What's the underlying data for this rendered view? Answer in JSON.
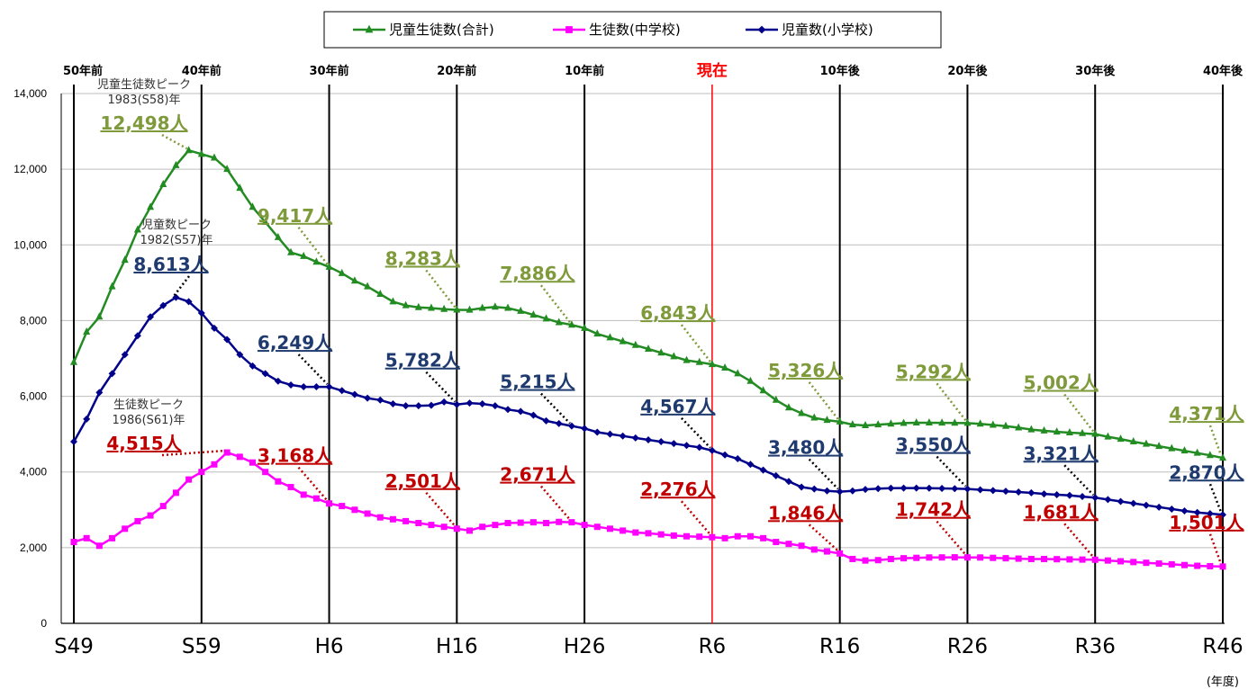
{
  "chart_data": {
    "type": "line",
    "legend": {
      "position": "top-center",
      "items": [
        {
          "key": "total",
          "label": "児童生徒数(合計)",
          "color": "#228b22",
          "marker": "triangle"
        },
        {
          "key": "junior",
          "label": "生徒数(中学校)",
          "color": "#ff00ff",
          "marker": "square"
        },
        {
          "key": "elementary",
          "label": "児童数(小学校)",
          "color": "#00008b",
          "marker": "diamond"
        }
      ]
    },
    "x_range": [
      1974,
      2064
    ],
    "ylim": [
      0,
      14000
    ],
    "y_ticks": [
      "14,000",
      "12,000",
      "10,000",
      "8,000",
      "6,000",
      "4,000",
      "2,000",
      "0"
    ],
    "y_tick_values": [
      14000,
      12000,
      10000,
      8000,
      6000,
      4000,
      2000,
      0
    ],
    "x_ticks": [
      {
        "year": 1974,
        "label": "S49"
      },
      {
        "year": 1984,
        "label": "S59"
      },
      {
        "year": 1994,
        "label": "H6"
      },
      {
        "year": 2004,
        "label": "H16"
      },
      {
        "year": 2014,
        "label": "H26"
      },
      {
        "year": 2024,
        "label": "R6"
      },
      {
        "year": 2034,
        "label": "R16"
      },
      {
        "year": 2044,
        "label": "R26"
      },
      {
        "year": 2054,
        "label": "R36"
      },
      {
        "year": 2064,
        "label": "R46"
      }
    ],
    "top_ticks": [
      {
        "year": 1974,
        "label": "50年前"
      },
      {
        "year": 1984,
        "label": "40年前"
      },
      {
        "year": 1994,
        "label": "30年前"
      },
      {
        "year": 2004,
        "label": "20年前"
      },
      {
        "year": 2014,
        "label": "10年前"
      },
      {
        "year": 2024,
        "label": "現在",
        "highlight": true
      },
      {
        "year": 2034,
        "label": "10年後"
      },
      {
        "year": 2044,
        "label": "20年後"
      },
      {
        "year": 2054,
        "label": "30年後"
      },
      {
        "year": 2064,
        "label": "40年後"
      }
    ],
    "x_unit": "(年度)",
    "grid": "horizontal gridlines with vertical lines every 10 years",
    "series": [
      {
        "key": "total",
        "name": "児童生徒数(合計)",
        "color": "#228b22",
        "x": [
          1974,
          1975,
          1976,
          1977,
          1978,
          1979,
          1980,
          1981,
          1982,
          1983,
          1984,
          1985,
          1986,
          1987,
          1988,
          1989,
          1990,
          1991,
          1992,
          1993,
          1994,
          1995,
          1996,
          1997,
          1998,
          1999,
          2000,
          2001,
          2002,
          2003,
          2004,
          2005,
          2006,
          2007,
          2008,
          2009,
          2010,
          2011,
          2012,
          2013,
          2014,
          2015,
          2016,
          2017,
          2018,
          2019,
          2020,
          2021,
          2022,
          2023,
          2024,
          2025,
          2026,
          2027,
          2028,
          2029,
          2030,
          2031,
          2032,
          2033,
          2034,
          2035,
          2036,
          2037,
          2038,
          2039,
          2040,
          2041,
          2042,
          2043,
          2044,
          2045,
          2046,
          2047,
          2048,
          2049,
          2050,
          2051,
          2052,
          2053,
          2054,
          2055,
          2056,
          2057,
          2058,
          2059,
          2060,
          2061,
          2062,
          2063,
          2064
        ],
        "values": [
          6900,
          7700,
          8100,
          8900,
          9600,
          10400,
          11000,
          11600,
          12100,
          12498,
          12400,
          12300,
          12000,
          11500,
          11000,
          10600,
          10200,
          9800,
          9700,
          9550,
          9417,
          9250,
          9050,
          8900,
          8700,
          8500,
          8400,
          8350,
          8330,
          8300,
          8283,
          8280,
          8330,
          8360,
          8330,
          8250,
          8150,
          8050,
          7950,
          7886,
          7800,
          7650,
          7550,
          7450,
          7350,
          7250,
          7150,
          7050,
          6950,
          6900,
          6843,
          6750,
          6600,
          6400,
          6150,
          5900,
          5700,
          5550,
          5430,
          5370,
          5326,
          5250,
          5230,
          5250,
          5270,
          5290,
          5300,
          5300,
          5298,
          5295,
          5292,
          5270,
          5240,
          5210,
          5170,
          5120,
          5090,
          5060,
          5040,
          5020,
          5002,
          4930,
          4870,
          4800,
          4740,
          4680,
          4620,
          4560,
          4500,
          4440,
          4371
        ]
      },
      {
        "key": "elementary",
        "name": "児童数(小学校)",
        "color": "#00008b",
        "x": [
          1974,
          1975,
          1976,
          1977,
          1978,
          1979,
          1980,
          1981,
          1982,
          1983,
          1984,
          1985,
          1986,
          1987,
          1988,
          1989,
          1990,
          1991,
          1992,
          1993,
          1994,
          1995,
          1996,
          1997,
          1998,
          1999,
          2000,
          2001,
          2002,
          2003,
          2004,
          2005,
          2006,
          2007,
          2008,
          2009,
          2010,
          2011,
          2012,
          2013,
          2014,
          2015,
          2016,
          2017,
          2018,
          2019,
          2020,
          2021,
          2022,
          2023,
          2024,
          2025,
          2026,
          2027,
          2028,
          2029,
          2030,
          2031,
          2032,
          2033,
          2034,
          2035,
          2036,
          2037,
          2038,
          2039,
          2040,
          2041,
          2042,
          2043,
          2044,
          2045,
          2046,
          2047,
          2048,
          2049,
          2050,
          2051,
          2052,
          2053,
          2054,
          2055,
          2056,
          2057,
          2058,
          2059,
          2060,
          2061,
          2062,
          2063,
          2064
        ],
        "values": [
          4800,
          5400,
          6100,
          6600,
          7100,
          7600,
          8100,
          8400,
          8613,
          8500,
          8200,
          7800,
          7500,
          7100,
          6800,
          6600,
          6400,
          6300,
          6250,
          6250,
          6249,
          6150,
          6050,
          5950,
          5900,
          5800,
          5750,
          5750,
          5760,
          5850,
          5782,
          5820,
          5800,
          5750,
          5650,
          5600,
          5500,
          5350,
          5280,
          5215,
          5150,
          5050,
          5000,
          4950,
          4900,
          4850,
          4800,
          4750,
          4700,
          4650,
          4567,
          4450,
          4350,
          4200,
          4050,
          3900,
          3750,
          3600,
          3550,
          3500,
          3480,
          3500,
          3540,
          3560,
          3570,
          3575,
          3575,
          3570,
          3565,
          3560,
          3550,
          3530,
          3510,
          3490,
          3470,
          3450,
          3420,
          3400,
          3380,
          3350,
          3321,
          3270,
          3220,
          3170,
          3120,
          3070,
          3020,
          2970,
          2930,
          2900,
          2870
        ]
      },
      {
        "key": "junior",
        "name": "生徒数(中学校)",
        "color": "#ff00ff",
        "x": [
          1974,
          1975,
          1976,
          1977,
          1978,
          1979,
          1980,
          1981,
          1982,
          1983,
          1984,
          1985,
          1986,
          1987,
          1988,
          1989,
          1990,
          1991,
          1992,
          1993,
          1994,
          1995,
          1996,
          1997,
          1998,
          1999,
          2000,
          2001,
          2002,
          2003,
          2004,
          2005,
          2006,
          2007,
          2008,
          2009,
          2010,
          2011,
          2012,
          2013,
          2014,
          2015,
          2016,
          2017,
          2018,
          2019,
          2020,
          2021,
          2022,
          2023,
          2024,
          2025,
          2026,
          2027,
          2028,
          2029,
          2030,
          2031,
          2032,
          2033,
          2034,
          2035,
          2036,
          2037,
          2038,
          2039,
          2040,
          2041,
          2042,
          2043,
          2044,
          2045,
          2046,
          2047,
          2048,
          2049,
          2050,
          2051,
          2052,
          2053,
          2054,
          2055,
          2056,
          2057,
          2058,
          2059,
          2060,
          2061,
          2062,
          2063,
          2064
        ],
        "values": [
          2150,
          2250,
          2050,
          2250,
          2500,
          2700,
          2850,
          3100,
          3450,
          3800,
          4000,
          4200,
          4515,
          4400,
          4250,
          4000,
          3750,
          3600,
          3400,
          3300,
          3168,
          3100,
          3000,
          2900,
          2800,
          2750,
          2700,
          2650,
          2600,
          2550,
          2501,
          2450,
          2550,
          2600,
          2650,
          2660,
          2670,
          2650,
          2680,
          2671,
          2600,
          2550,
          2500,
          2450,
          2400,
          2380,
          2350,
          2320,
          2300,
          2290,
          2276,
          2250,
          2300,
          2300,
          2250,
          2150,
          2100,
          2050,
          1950,
          1900,
          1846,
          1700,
          1660,
          1670,
          1700,
          1720,
          1730,
          1740,
          1742,
          1745,
          1742,
          1740,
          1730,
          1720,
          1710,
          1700,
          1700,
          1695,
          1690,
          1685,
          1681,
          1660,
          1640,
          1620,
          1600,
          1580,
          1560,
          1540,
          1520,
          1510,
          1501
        ]
      }
    ],
    "peak_notes": [
      {
        "key": "total_peak",
        "lines": [
          "児童生徒数ピーク",
          "1983(S58)年"
        ],
        "value_label": "12,498人",
        "x": 1983,
        "y": 12498,
        "series": "total"
      },
      {
        "key": "elem_peak",
        "lines": [
          "児童数ピーク",
          "1982(S57)年"
        ],
        "value_label": "8,613人",
        "x": 1982,
        "y": 8613,
        "series": "elementary"
      },
      {
        "key": "junior_peak",
        "lines": [
          "生徒数ピーク",
          "1986(S61)年"
        ],
        "value_label": "4,515人",
        "x": 1986,
        "y": 4515,
        "series": "junior"
      }
    ],
    "annotations": [
      {
        "series": "total",
        "label": "9,417人",
        "x": 1994,
        "y": 9417
      },
      {
        "series": "total",
        "label": "8,283人",
        "x": 2004,
        "y": 8283
      },
      {
        "series": "total",
        "label": "7,886人",
        "x": 2013,
        "y": 7886
      },
      {
        "series": "total",
        "label": "6,843人",
        "x": 2024,
        "y": 6843
      },
      {
        "series": "total",
        "label": "5,326人",
        "x": 2034,
        "y": 5326
      },
      {
        "series": "total",
        "label": "5,292人",
        "x": 2044,
        "y": 5292
      },
      {
        "series": "total",
        "label": "5,002人",
        "x": 2054,
        "y": 5002
      },
      {
        "series": "total",
        "label": "4,371人",
        "x": 2064,
        "y": 4371
      },
      {
        "series": "elementary",
        "label": "6,249人",
        "x": 1994,
        "y": 6249
      },
      {
        "series": "elementary",
        "label": "5,782人",
        "x": 2004,
        "y": 5782
      },
      {
        "series": "elementary",
        "label": "5,215人",
        "x": 2013,
        "y": 5215
      },
      {
        "series": "elementary",
        "label": "4,567人",
        "x": 2024,
        "y": 4567
      },
      {
        "series": "elementary",
        "label": "3,480人",
        "x": 2034,
        "y": 3480
      },
      {
        "series": "elementary",
        "label": "3,550人",
        "x": 2044,
        "y": 3550
      },
      {
        "series": "elementary",
        "label": "3,321人",
        "x": 2054,
        "y": 3321
      },
      {
        "series": "elementary",
        "label": "2,870人",
        "x": 2064,
        "y": 2870
      },
      {
        "series": "junior",
        "label": "3,168人",
        "x": 1994,
        "y": 3168
      },
      {
        "series": "junior",
        "label": "2,501人",
        "x": 2004,
        "y": 2501
      },
      {
        "series": "junior",
        "label": "2,671人",
        "x": 2013,
        "y": 2671
      },
      {
        "series": "junior",
        "label": "2,276人",
        "x": 2024,
        "y": 2276
      },
      {
        "series": "junior",
        "label": "1,846人",
        "x": 2034,
        "y": 1846
      },
      {
        "series": "junior",
        "label": "1,742人",
        "x": 2044,
        "y": 1742
      },
      {
        "series": "junior",
        "label": "1,681人",
        "x": 2054,
        "y": 1681
      },
      {
        "series": "junior",
        "label": "1,501人",
        "x": 2064,
        "y": 1501
      }
    ],
    "label_colors": {
      "total": "#7f9a3a",
      "elementary": "#1f3a6e",
      "junior": "#c00000",
      "total_leader": "#7f9a3a",
      "elementary_leader": "#000000",
      "junior_leader": "#c00000",
      "now_line": "#ff0000",
      "peak_note_text": "#333333"
    }
  }
}
